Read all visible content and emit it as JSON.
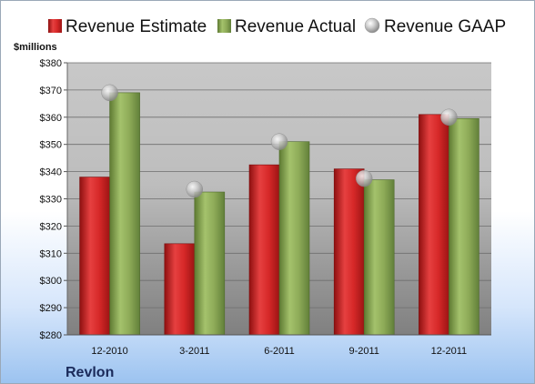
{
  "chart_data": {
    "type": "bar",
    "unit_label": "$millions",
    "company": "Revlon",
    "categories": [
      "12-2010",
      "3-2011",
      "6-2011",
      "9-2011",
      "12-2011"
    ],
    "ylim": [
      280,
      380
    ],
    "yticks": [
      280,
      290,
      300,
      310,
      320,
      330,
      340,
      350,
      360,
      370,
      380
    ],
    "ytick_labels": [
      "$280",
      "$290",
      "$300",
      "$310",
      "$320",
      "$330",
      "$340",
      "$350",
      "$360",
      "$370",
      "$380"
    ],
    "grid": true,
    "legend_position": "top",
    "series": [
      {
        "name": "Revenue Estimate",
        "kind": "bar",
        "color": "#d42a2a",
        "values": [
          338,
          313.5,
          342.5,
          341,
          361
        ]
      },
      {
        "name": "Revenue Actual",
        "kind": "bar",
        "color": "#8aaa55",
        "values": [
          369,
          332.5,
          351,
          337,
          359.5
        ]
      },
      {
        "name": "Revenue GAAP",
        "kind": "marker",
        "color": "#c8c8c8",
        "values": [
          369,
          333.5,
          351,
          337.5,
          360
        ]
      }
    ]
  }
}
